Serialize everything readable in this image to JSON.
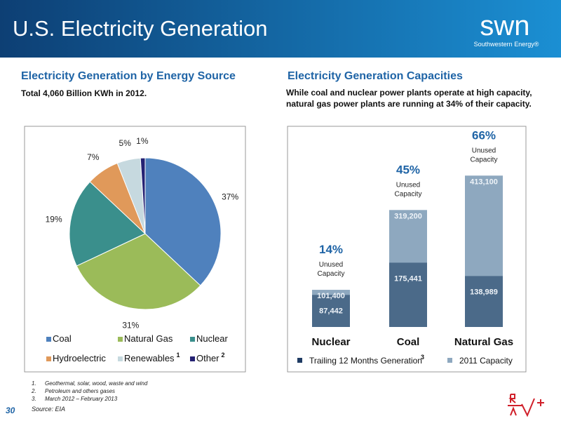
{
  "header": {
    "title": "U.S. Electricity Generation",
    "logo": "swn",
    "logo_subtitle": "Southwestern Energy®"
  },
  "chart_data": [
    {
      "type": "pie",
      "title": "Electricity Generation by Energy Source",
      "subtitle": "Total 4,060 Billion KWh in 2012.",
      "categories": [
        "Coal",
        "Natural Gas",
        "Nuclear",
        "Hydroelectric",
        "Renewables",
        "Other"
      ],
      "values": [
        37,
        31,
        19,
        7,
        5,
        1
      ],
      "value_labels": [
        "37%",
        "31%",
        "19%",
        "7%",
        "5%",
        "1%"
      ],
      "colors": [
        "#4f81bd",
        "#9bbb59",
        "#3a8f8c",
        "#e0995a",
        "#c6d9df",
        "#252273"
      ],
      "notes": [
        null,
        null,
        null,
        null,
        "1",
        "2"
      ]
    },
    {
      "type": "bar",
      "title": "Electricity Generation Capacities",
      "subtitle": "While coal and nuclear power plants operate at high capacity, natural gas power plants are running at 34% of their capacity.",
      "categories": [
        "Nuclear",
        "Coal",
        "Natural Gas"
      ],
      "series": [
        {
          "name": "Trailing 12 Months Generation",
          "note": "3",
          "color": "#4b6a89",
          "values": [
            87442,
            175441,
            138989
          ],
          "value_labels": [
            "87,442",
            "175,441",
            "138,989"
          ]
        },
        {
          "name": "2011 Capacity",
          "color": "#8ea8bf",
          "values": [
            101400,
            319200,
            413100
          ],
          "value_labels": [
            "101,400",
            "319,200",
            "413,100"
          ]
        }
      ],
      "unused_capacity": {
        "values": [
          14,
          45,
          66
        ],
        "value_labels": [
          "14%",
          "45%",
          "66%"
        ],
        "label": [
          "Unused",
          "Capacity"
        ]
      },
      "ylim": [
        0,
        450000
      ]
    }
  ],
  "footnotes": [
    {
      "number": "1.",
      "text": "Geothermal, solar, wood, waste and wind"
    },
    {
      "number": "2.",
      "text": "Petroleum and others gases"
    },
    {
      "number": "3.",
      "text": "March 2012 – February 2013"
    }
  ],
  "source": "Source: EIA",
  "page_number": "30"
}
